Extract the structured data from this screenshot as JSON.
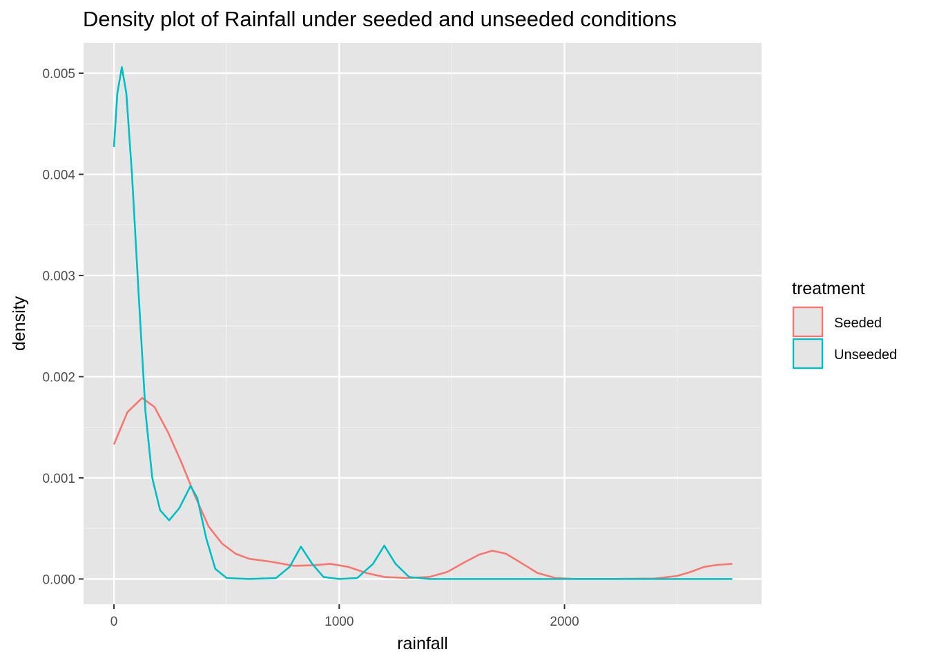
{
  "chart_data": {
    "type": "line",
    "subtype": "density",
    "title": "Density plot of Rainfall under seeded and unseeded conditions",
    "xlabel": "rainfall",
    "ylabel": "density",
    "xlim": [
      -135,
      2875
    ],
    "ylim": [
      -0.00025,
      0.0053
    ],
    "x_ticks": [
      0,
      1000,
      2000
    ],
    "x_tick_labels": [
      "0",
      "1000",
      "2000"
    ],
    "y_ticks": [
      0,
      0.001,
      0.002,
      0.003,
      0.004,
      0.005
    ],
    "y_tick_labels": [
      "0.000",
      "0.001",
      "0.002",
      "0.003",
      "0.004",
      "0.005"
    ],
    "grid": true,
    "background": "#e5e5e5",
    "legend": {
      "title": "treatment",
      "placement": "right",
      "entries": [
        "Seeded",
        "Unseeded"
      ]
    },
    "series": [
      {
        "name": "Seeded",
        "color": "#f8766d",
        "points": [
          [
            0,
            0.00133
          ],
          [
            60,
            0.00165
          ],
          [
            125,
            0.00179
          ],
          [
            180,
            0.0017
          ],
          [
            240,
            0.00145
          ],
          [
            300,
            0.00115
          ],
          [
            360,
            0.00082
          ],
          [
            420,
            0.00052
          ],
          [
            480,
            0.00035
          ],
          [
            540,
            0.00025
          ],
          [
            600,
            0.0002
          ],
          [
            700,
            0.00017
          ],
          [
            800,
            0.00013
          ],
          [
            880,
            0.000135
          ],
          [
            960,
            0.00015
          ],
          [
            1040,
            0.00012
          ],
          [
            1120,
            6e-05
          ],
          [
            1200,
            2e-05
          ],
          [
            1300,
            1e-05
          ],
          [
            1400,
            2e-05
          ],
          [
            1480,
            7e-05
          ],
          [
            1560,
            0.00017
          ],
          [
            1620,
            0.00024
          ],
          [
            1680,
            0.00028
          ],
          [
            1740,
            0.00025
          ],
          [
            1800,
            0.00017
          ],
          [
            1880,
            6e-05
          ],
          [
            1960,
            1e-05
          ],
          [
            2050,
            0.0
          ],
          [
            2200,
            0.0
          ],
          [
            2400,
            5e-06
          ],
          [
            2500,
            3e-05
          ],
          [
            2560,
            7e-05
          ],
          [
            2620,
            0.00012
          ],
          [
            2680,
            0.00014
          ],
          [
            2745,
            0.00015
          ]
        ]
      },
      {
        "name": "Unseeded",
        "color": "#00bfc4",
        "points": [
          [
            0,
            0.00427
          ],
          [
            15,
            0.0048
          ],
          [
            35,
            0.00506
          ],
          [
            55,
            0.0048
          ],
          [
            80,
            0.004
          ],
          [
            110,
            0.0028
          ],
          [
            140,
            0.00165
          ],
          [
            170,
            0.001
          ],
          [
            205,
            0.00068
          ],
          [
            245,
            0.00058
          ],
          [
            290,
            0.0007
          ],
          [
            340,
            0.00092
          ],
          [
            370,
            0.0008
          ],
          [
            410,
            0.0004
          ],
          [
            450,
            0.0001
          ],
          [
            500,
            1e-05
          ],
          [
            600,
            0.0
          ],
          [
            720,
            1e-05
          ],
          [
            780,
            0.00012
          ],
          [
            830,
            0.00032
          ],
          [
            880,
            0.00015
          ],
          [
            930,
            2e-05
          ],
          [
            1000,
            0.0
          ],
          [
            1080,
            1e-05
          ],
          [
            1150,
            0.00015
          ],
          [
            1200,
            0.00033
          ],
          [
            1250,
            0.00015
          ],
          [
            1310,
            2e-05
          ],
          [
            1400,
            0.0
          ],
          [
            1800,
            0.0
          ],
          [
            2200,
            0.0
          ],
          [
            2745,
            0.0
          ]
        ]
      }
    ]
  }
}
